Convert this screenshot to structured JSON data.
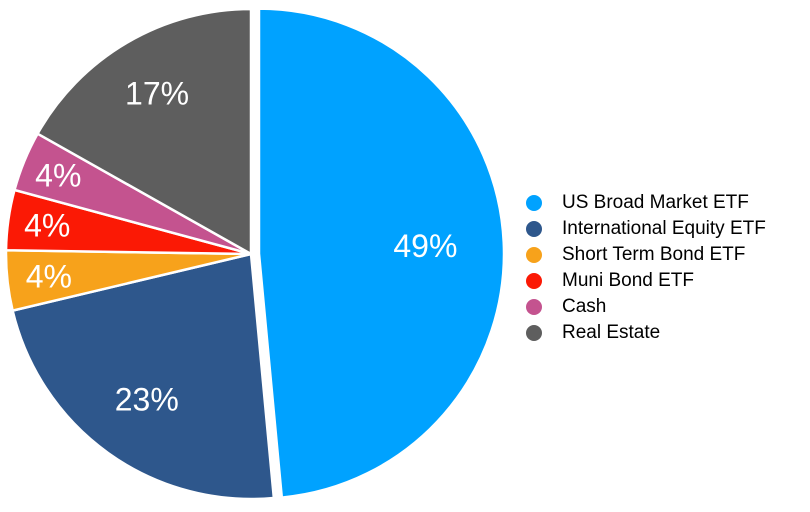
{
  "chart_data": {
    "type": "pie",
    "title": "",
    "legend_position": "right",
    "background": "#FFFFFF",
    "slice_label_color": "#FFFFFF",
    "slice_border_color": "#FFFFFF",
    "exploded_slice_index": 0,
    "series": [
      {
        "label": "US Broad Market ETF",
        "value": 49,
        "display": "49%",
        "color": "#00A2FF",
        "label_r": 0.68
      },
      {
        "label": "International Equity ETF",
        "value": 23,
        "display": "23%",
        "color": "#2E578C",
        "label_r": 0.73
      },
      {
        "label": "Short Term Bond ETF",
        "value": 4,
        "display": "4%",
        "color": "#F7A21B",
        "label_r": 0.83
      },
      {
        "label": "Muni Bond ETF",
        "value": 4,
        "display": "4%",
        "color": "#FB1905",
        "label_r": 0.84
      },
      {
        "label": "Cash",
        "value": 4,
        "display": "4%",
        "color": "#C4538F",
        "label_r": 0.85
      },
      {
        "label": "Real Estate",
        "value": 17,
        "display": "17%",
        "color": "#5E5E5E",
        "label_r": 0.76
      }
    ]
  }
}
